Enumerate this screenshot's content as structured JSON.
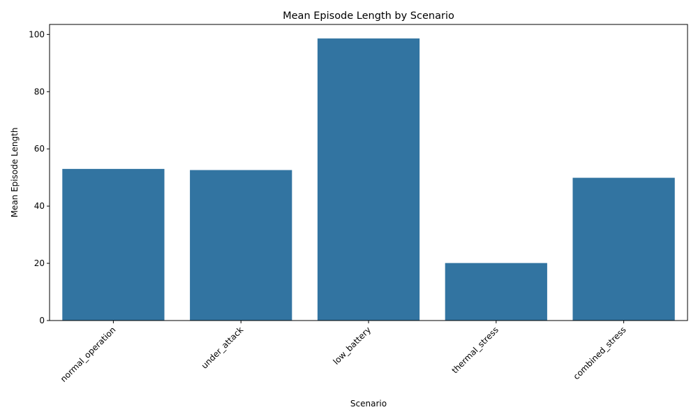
{
  "chart_data": {
    "type": "bar",
    "title": "Mean Episode Length by Scenario",
    "xlabel": "Scenario",
    "ylabel": "Mean Episode Length",
    "categories": [
      "normal_operation",
      "under_attack",
      "low_battery",
      "thermal_stress",
      "combined_stress"
    ],
    "values": [
      53.0,
      52.6,
      98.6,
      20.1,
      49.9
    ],
    "ylim": [
      0,
      103.5
    ],
    "yticks": [
      0,
      20,
      40,
      60,
      80,
      100
    ],
    "bar_color": "#3274a1",
    "xtick_rotation": -45,
    "grid": false,
    "legend": false
  }
}
